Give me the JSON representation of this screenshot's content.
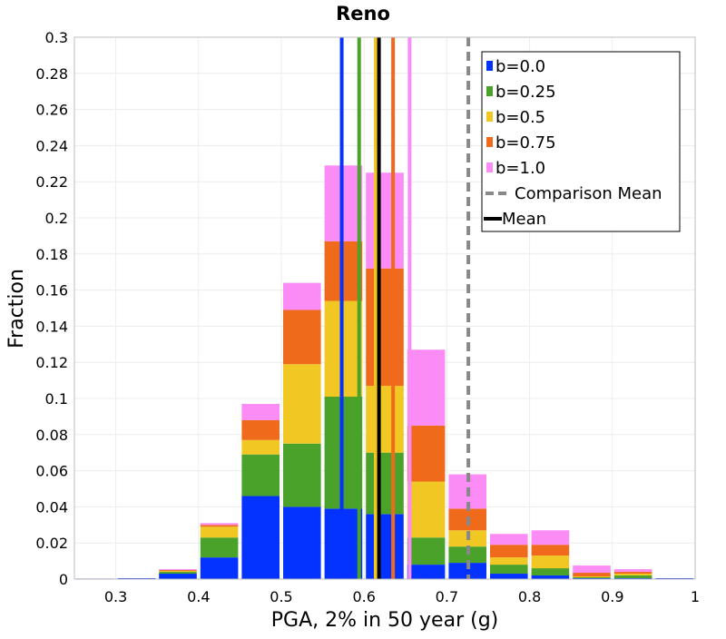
{
  "chart_data": {
    "type": "bar",
    "stacked": true,
    "title": "Reno",
    "xlabel": "PGA, 2% in 50 year (g)",
    "ylabel": "Fraction",
    "xlim": [
      0.25,
      1.0
    ],
    "ylim": [
      0,
      0.3
    ],
    "x_ticks": [
      "0.3",
      "0.4",
      "0.5",
      "0.6",
      "0.7",
      "0.8",
      "0.9",
      "1"
    ],
    "y_ticks": [
      "0",
      "0.02",
      "0.04",
      "0.06",
      "0.08",
      "0.1",
      "0.12",
      "0.14",
      "0.16",
      "0.18",
      "0.2",
      "0.22",
      "0.24",
      "0.26",
      "0.28",
      "0.3"
    ],
    "bin_width": 0.05,
    "bin_centers": [
      0.275,
      0.325,
      0.375,
      0.425,
      0.475,
      0.525,
      0.575,
      0.625,
      0.675,
      0.725,
      0.775,
      0.825,
      0.875,
      0.925,
      0.975
    ],
    "series": [
      {
        "name": "b=0.0",
        "color": "#0433ff",
        "values": [
          0.0003,
          0.0005,
          0.003,
          0.012,
          0.046,
          0.04,
          0.039,
          0.036,
          0.008,
          0.009,
          0.003,
          0.002,
          0.0005,
          0.0005,
          0.0005
        ]
      },
      {
        "name": "b=0.25",
        "color": "#4aa22a",
        "values": [
          0,
          0,
          0.001,
          0.011,
          0.023,
          0.035,
          0.062,
          0.034,
          0.015,
          0.009,
          0.005,
          0.004,
          0.0005,
          0.0015,
          0
        ]
      },
      {
        "name": "b=0.5",
        "color": "#f0c723",
        "values": [
          0,
          0,
          0.0005,
          0.006,
          0.008,
          0.044,
          0.053,
          0.037,
          0.031,
          0.009,
          0.004,
          0.007,
          0.0005,
          0.001,
          0
        ]
      },
      {
        "name": "b=0.75",
        "color": "#f06a1b",
        "values": [
          0,
          0,
          0.0005,
          0.001,
          0.011,
          0.03,
          0.033,
          0.065,
          0.031,
          0.012,
          0.007,
          0.006,
          0.002,
          0.001,
          0
        ]
      },
      {
        "name": "b=1.0",
        "color": "#fb8cf6",
        "values": [
          0,
          0,
          0.0005,
          0.001,
          0.009,
          0.015,
          0.042,
          0.053,
          0.042,
          0.019,
          0.006,
          0.008,
          0.004,
          0.0015,
          0
        ]
      }
    ],
    "mean_lines": [
      {
        "name": "b=0.0",
        "color": "#0433ff",
        "x": 0.573
      },
      {
        "name": "b=0.25",
        "color": "#4aa22a",
        "x": 0.594
      },
      {
        "name": "b=0.5",
        "color": "#f0c723",
        "x": 0.614
      },
      {
        "name": "b=0.75",
        "color": "#f06a1b",
        "x": 0.635
      },
      {
        "name": "b=1.0",
        "color": "#fb8cf6",
        "x": 0.655
      },
      {
        "name": "Mean",
        "color": "#000000",
        "x": 0.618
      }
    ],
    "comparison_mean": {
      "name": "Comparison Mean",
      "color": "#888888",
      "x": 0.726,
      "style": "dashed"
    },
    "legend": {
      "placement": "top-right",
      "entries": [
        {
          "label": "b=0.0",
          "color": "#0433ff",
          "kind": "box"
        },
        {
          "label": "b=0.25",
          "color": "#4aa22a",
          "kind": "box"
        },
        {
          "label": "b=0.5",
          "color": "#f0c723",
          "kind": "box"
        },
        {
          "label": "b=0.75",
          "color": "#f06a1b",
          "kind": "box"
        },
        {
          "label": "b=1.0",
          "color": "#fb8cf6",
          "kind": "box"
        },
        {
          "label": "Comparison Mean",
          "color": "#888888",
          "kind": "dashed"
        },
        {
          "label": "Mean",
          "color": "#000000",
          "kind": "line"
        }
      ]
    },
    "grid": true
  }
}
